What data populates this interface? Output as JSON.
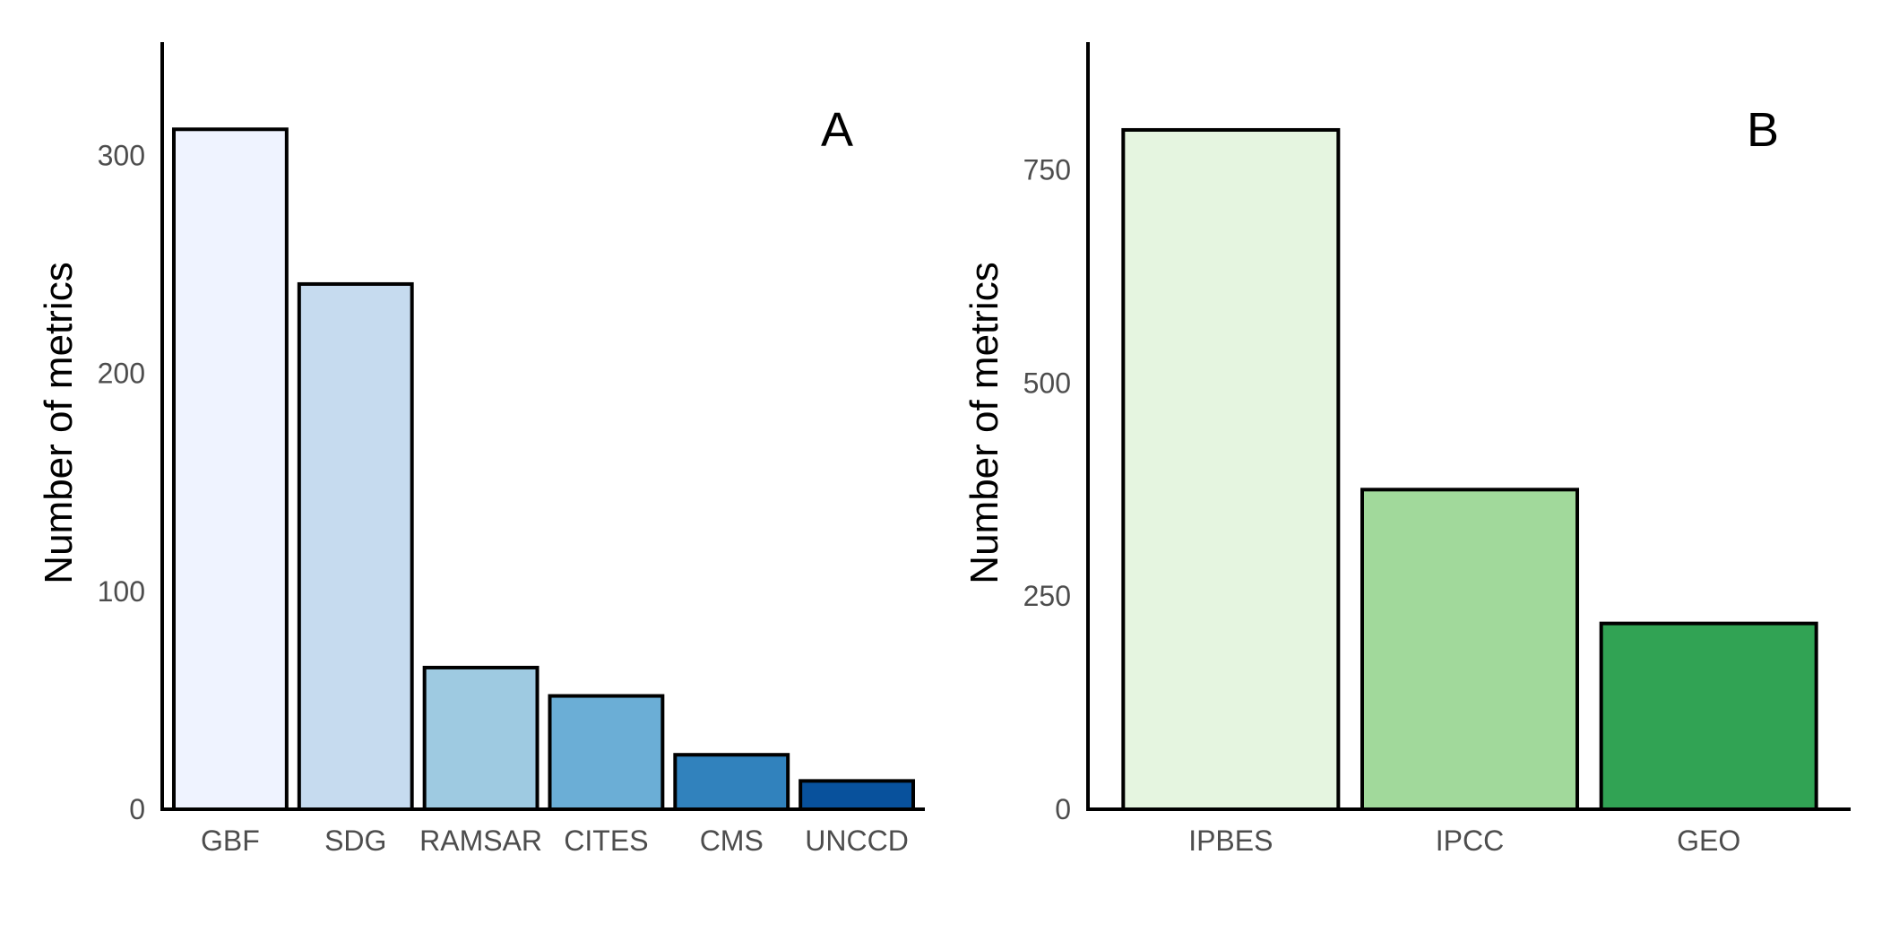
{
  "chart_data": [
    {
      "type": "bar",
      "panel_label": "A",
      "ylabel": "Number of metrics",
      "xlabel": "",
      "ylim": [
        0,
        352
      ],
      "yticks": [
        0,
        100,
        200,
        300
      ],
      "categories": [
        "GBF",
        "SDG",
        "RAMSAR",
        "CITES",
        "CMS",
        "UNCCD"
      ],
      "values": [
        312,
        241,
        65,
        52,
        25,
        13
      ],
      "colors": [
        "#eff3ff",
        "#c6dbef",
        "#9ecae1",
        "#6baed6",
        "#3182bd",
        "#08519c"
      ],
      "grid": false
    },
    {
      "type": "bar",
      "panel_label": "B",
      "ylabel": "Number of metrics",
      "xlabel": "",
      "ylim": [
        0,
        900
      ],
      "yticks": [
        0,
        250,
        500,
        750
      ],
      "categories": [
        "IPBES",
        "IPCC",
        "GEO"
      ],
      "values": [
        797,
        375,
        218
      ],
      "colors": [
        "#e5f5e0",
        "#a1d99b",
        "#31a354"
      ],
      "grid": false
    }
  ]
}
